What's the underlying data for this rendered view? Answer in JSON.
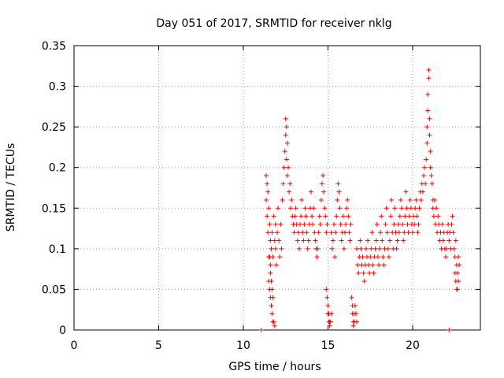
{
  "chart_data": {
    "type": "scatter",
    "title": "Day 051 of 2017, SRMTID for receiver nklg",
    "xlabel": "GPS time / hours",
    "ylabel": "SRMTID / TECUs",
    "xlim": [
      0,
      24
    ],
    "ylim": [
      0,
      0.35
    ],
    "xticks": [
      0,
      5,
      10,
      15,
      20
    ],
    "xtick_labels": [
      "0",
      "5",
      "10",
      "15",
      "20"
    ],
    "yticks": [
      0,
      0.05,
      0.1,
      0.15,
      0.2,
      0.25,
      0.3,
      0.35
    ],
    "ytick_labels": [
      "0",
      "0.05",
      "0.1",
      "0.15",
      "0.2",
      "0.25",
      "0.3",
      "0.35"
    ],
    "grid": true,
    "marker": "plus",
    "color": "#ff0000",
    "series": [
      {
        "x": [
          11.05,
          22.15,
          11.35,
          11.35,
          11.4,
          11.4,
          11.45,
          11.45,
          11.5,
          11.5,
          11.55,
          11.6,
          11.6,
          11.65,
          11.7,
          11.75,
          11.8,
          11.85,
          11.9,
          11.5,
          11.55,
          11.6,
          11.65,
          11.7,
          11.75,
          11.8,
          11.85,
          11.9,
          11.95,
          12.0,
          12.05,
          12.1,
          12.15,
          12.2,
          12.25,
          11.55,
          11.6,
          11.65,
          11.7,
          11.75,
          12.3,
          12.35,
          12.4,
          12.45,
          12.5,
          12.5,
          12.55,
          12.55,
          12.6,
          12.6,
          12.65,
          12.7,
          12.75,
          12.8,
          12.85,
          12.9,
          12.95,
          13.0,
          13.05,
          13.1,
          13.15,
          13.2,
          13.25,
          13.3,
          13.35,
          13.4,
          13.45,
          13.5,
          13.55,
          13.6,
          13.65,
          13.7,
          13.75,
          13.8,
          13.85,
          13.9,
          13.95,
          14.0,
          14.05,
          14.1,
          14.15,
          14.2,
          14.25,
          14.3,
          14.35,
          14.4,
          14.45,
          14.5,
          14.55,
          14.6,
          14.65,
          14.7,
          14.75,
          14.8,
          14.85,
          14.9,
          14.95,
          14.9,
          14.95,
          15.0,
          15.0,
          15.05,
          15.05,
          15.1,
          15.1,
          15.15,
          15.2,
          15.2,
          15.25,
          15.3,
          15.35,
          15.4,
          15.45,
          15.5,
          15.55,
          15.6,
          15.65,
          15.7,
          15.75,
          15.8,
          15.85,
          15.9,
          15.95,
          16.0,
          16.05,
          16.1,
          16.15,
          16.2,
          16.25,
          16.3,
          16.35,
          16.4,
          16.45,
          16.45,
          16.5,
          16.5,
          16.55,
          16.55,
          16.6,
          16.65,
          16.7,
          16.7,
          16.75,
          16.8,
          16.85,
          16.9,
          16.95,
          17.0,
          17.05,
          17.1,
          17.15,
          17.2,
          17.25,
          17.3,
          17.35,
          17.4,
          17.45,
          17.5,
          17.55,
          17.6,
          17.65,
          17.7,
          17.75,
          17.8,
          17.85,
          17.9,
          17.95,
          18.0,
          18.05,
          18.1,
          18.15,
          18.2,
          18.25,
          18.3,
          18.35,
          18.4,
          18.45,
          18.5,
          18.55,
          18.6,
          18.65,
          18.7,
          18.75,
          18.8,
          18.85,
          18.9,
          18.95,
          19.0,
          19.05,
          19.1,
          19.15,
          19.2,
          19.25,
          19.3,
          19.35,
          19.4,
          19.45,
          19.5,
          19.55,
          19.6,
          19.65,
          19.7,
          19.75,
          19.8,
          19.85,
          19.9,
          19.95,
          20.0,
          20.05,
          20.1,
          20.15,
          20.2,
          20.25,
          20.3,
          20.35,
          20.4,
          20.45,
          20.5,
          20.55,
          20.6,
          20.65,
          20.7,
          20.75,
          20.8,
          20.85,
          20.85,
          20.9,
          20.9,
          20.95,
          20.95,
          21.0,
          21.0,
          21.05,
          21.05,
          21.1,
          21.15,
          21.2,
          21.2,
          21.25,
          21.3,
          21.35,
          21.4,
          21.45,
          21.5,
          21.55,
          21.6,
          21.65,
          21.7,
          21.75,
          21.8,
          21.85,
          21.9,
          21.95,
          22.0,
          22.05,
          22.1,
          22.15,
          22.2,
          22.25,
          22.3,
          22.35,
          22.4,
          22.45,
          22.5,
          22.55,
          22.6,
          22.65,
          22.7,
          22.75,
          22.5,
          22.55,
          22.6,
          22.65,
          22.7
        ],
        "y": [
          0.0,
          0.0,
          0.19,
          0.16,
          0.18,
          0.14,
          0.17,
          0.12,
          0.15,
          0.09,
          0.13,
          0.11,
          0.08,
          0.1,
          0.12,
          0.09,
          0.14,
          0.11,
          0.13,
          0.06,
          0.05,
          0.04,
          0.03,
          0.02,
          0.01,
          0.01,
          0.005,
          0.1,
          0.08,
          0.12,
          0.15,
          0.11,
          0.09,
          0.13,
          0.1,
          0.09,
          0.07,
          0.06,
          0.05,
          0.04,
          0.16,
          0.18,
          0.2,
          0.22,
          0.24,
          0.26,
          0.25,
          0.21,
          0.23,
          0.19,
          0.2,
          0.17,
          0.18,
          0.15,
          0.16,
          0.14,
          0.13,
          0.12,
          0.14,
          0.15,
          0.13,
          0.11,
          0.12,
          0.1,
          0.13,
          0.14,
          0.16,
          0.12,
          0.11,
          0.13,
          0.15,
          0.14,
          0.12,
          0.1,
          0.11,
          0.13,
          0.15,
          0.17,
          0.14,
          0.13,
          0.15,
          0.12,
          0.11,
          0.1,
          0.09,
          0.1,
          0.12,
          0.14,
          0.13,
          0.16,
          0.18,
          0.19,
          0.17,
          0.15,
          0.14,
          0.12,
          0.13,
          0.05,
          0.04,
          0.03,
          0.02,
          0.02,
          0.01,
          0.01,
          0.005,
          0.01,
          0.02,
          0.12,
          0.1,
          0.11,
          0.13,
          0.09,
          0.12,
          0.14,
          0.16,
          0.18,
          0.17,
          0.15,
          0.13,
          0.11,
          0.12,
          0.14,
          0.1,
          0.12,
          0.13,
          0.15,
          0.16,
          0.14,
          0.12,
          0.11,
          0.13,
          0.04,
          0.03,
          0.02,
          0.01,
          0.005,
          0.02,
          0.01,
          0.03,
          0.02,
          0.01,
          0.1,
          0.08,
          0.07,
          0.09,
          0.11,
          0.1,
          0.08,
          0.09,
          0.07,
          0.06,
          0.08,
          0.1,
          0.09,
          0.11,
          0.08,
          0.07,
          0.09,
          0.1,
          0.12,
          0.08,
          0.07,
          0.09,
          0.1,
          0.11,
          0.13,
          0.09,
          0.08,
          0.1,
          0.12,
          0.14,
          0.11,
          0.09,
          0.08,
          0.1,
          0.13,
          0.15,
          0.12,
          0.1,
          0.09,
          0.11,
          0.14,
          0.16,
          0.12,
          0.1,
          0.13,
          0.15,
          0.12,
          0.1,
          0.11,
          0.13,
          0.12,
          0.14,
          0.16,
          0.15,
          0.13,
          0.11,
          0.12,
          0.14,
          0.17,
          0.15,
          0.13,
          0.12,
          0.14,
          0.16,
          0.15,
          0.13,
          0.12,
          0.14,
          0.13,
          0.15,
          0.16,
          0.14,
          0.12,
          0.13,
          0.15,
          0.17,
          0.16,
          0.18,
          0.17,
          0.19,
          0.2,
          0.18,
          0.21,
          0.23,
          0.25,
          0.27,
          0.29,
          0.31,
          0.32,
          0.26,
          0.24,
          0.22,
          0.2,
          0.19,
          0.18,
          0.16,
          0.15,
          0.14,
          0.16,
          0.13,
          0.15,
          0.12,
          0.14,
          0.13,
          0.11,
          0.12,
          0.1,
          0.13,
          0.11,
          0.12,
          0.1,
          0.09,
          0.1,
          0.12,
          0.13,
          0.11,
          0.12,
          0.1,
          0.13,
          0.14,
          0.12,
          0.1,
          0.09,
          0.11,
          0.08,
          0.07,
          0.09,
          0.08,
          0.07,
          0.06,
          0.05,
          0.05,
          0.06
        ]
      }
    ]
  }
}
